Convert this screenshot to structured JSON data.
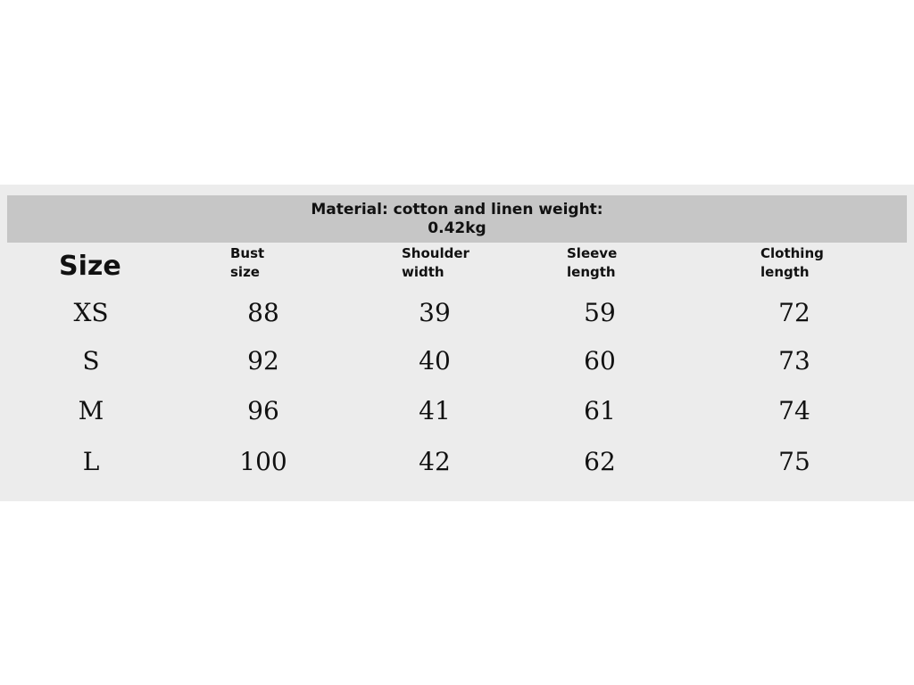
{
  "header": {
    "title_lines": [
      "Material: cotton and linen weight:",
      "0.42kg"
    ]
  },
  "table": {
    "columns": [
      "Size",
      "Bust size",
      "Shoulder width",
      "Sleeve length",
      "Clothing length"
    ],
    "rows": [
      [
        "XS",
        88,
        39,
        59,
        72
      ],
      [
        "S",
        92,
        40,
        60,
        73
      ],
      [
        "M",
        96,
        41,
        61,
        74
      ],
      [
        "L",
        100,
        42,
        62,
        75
      ]
    ]
  }
}
